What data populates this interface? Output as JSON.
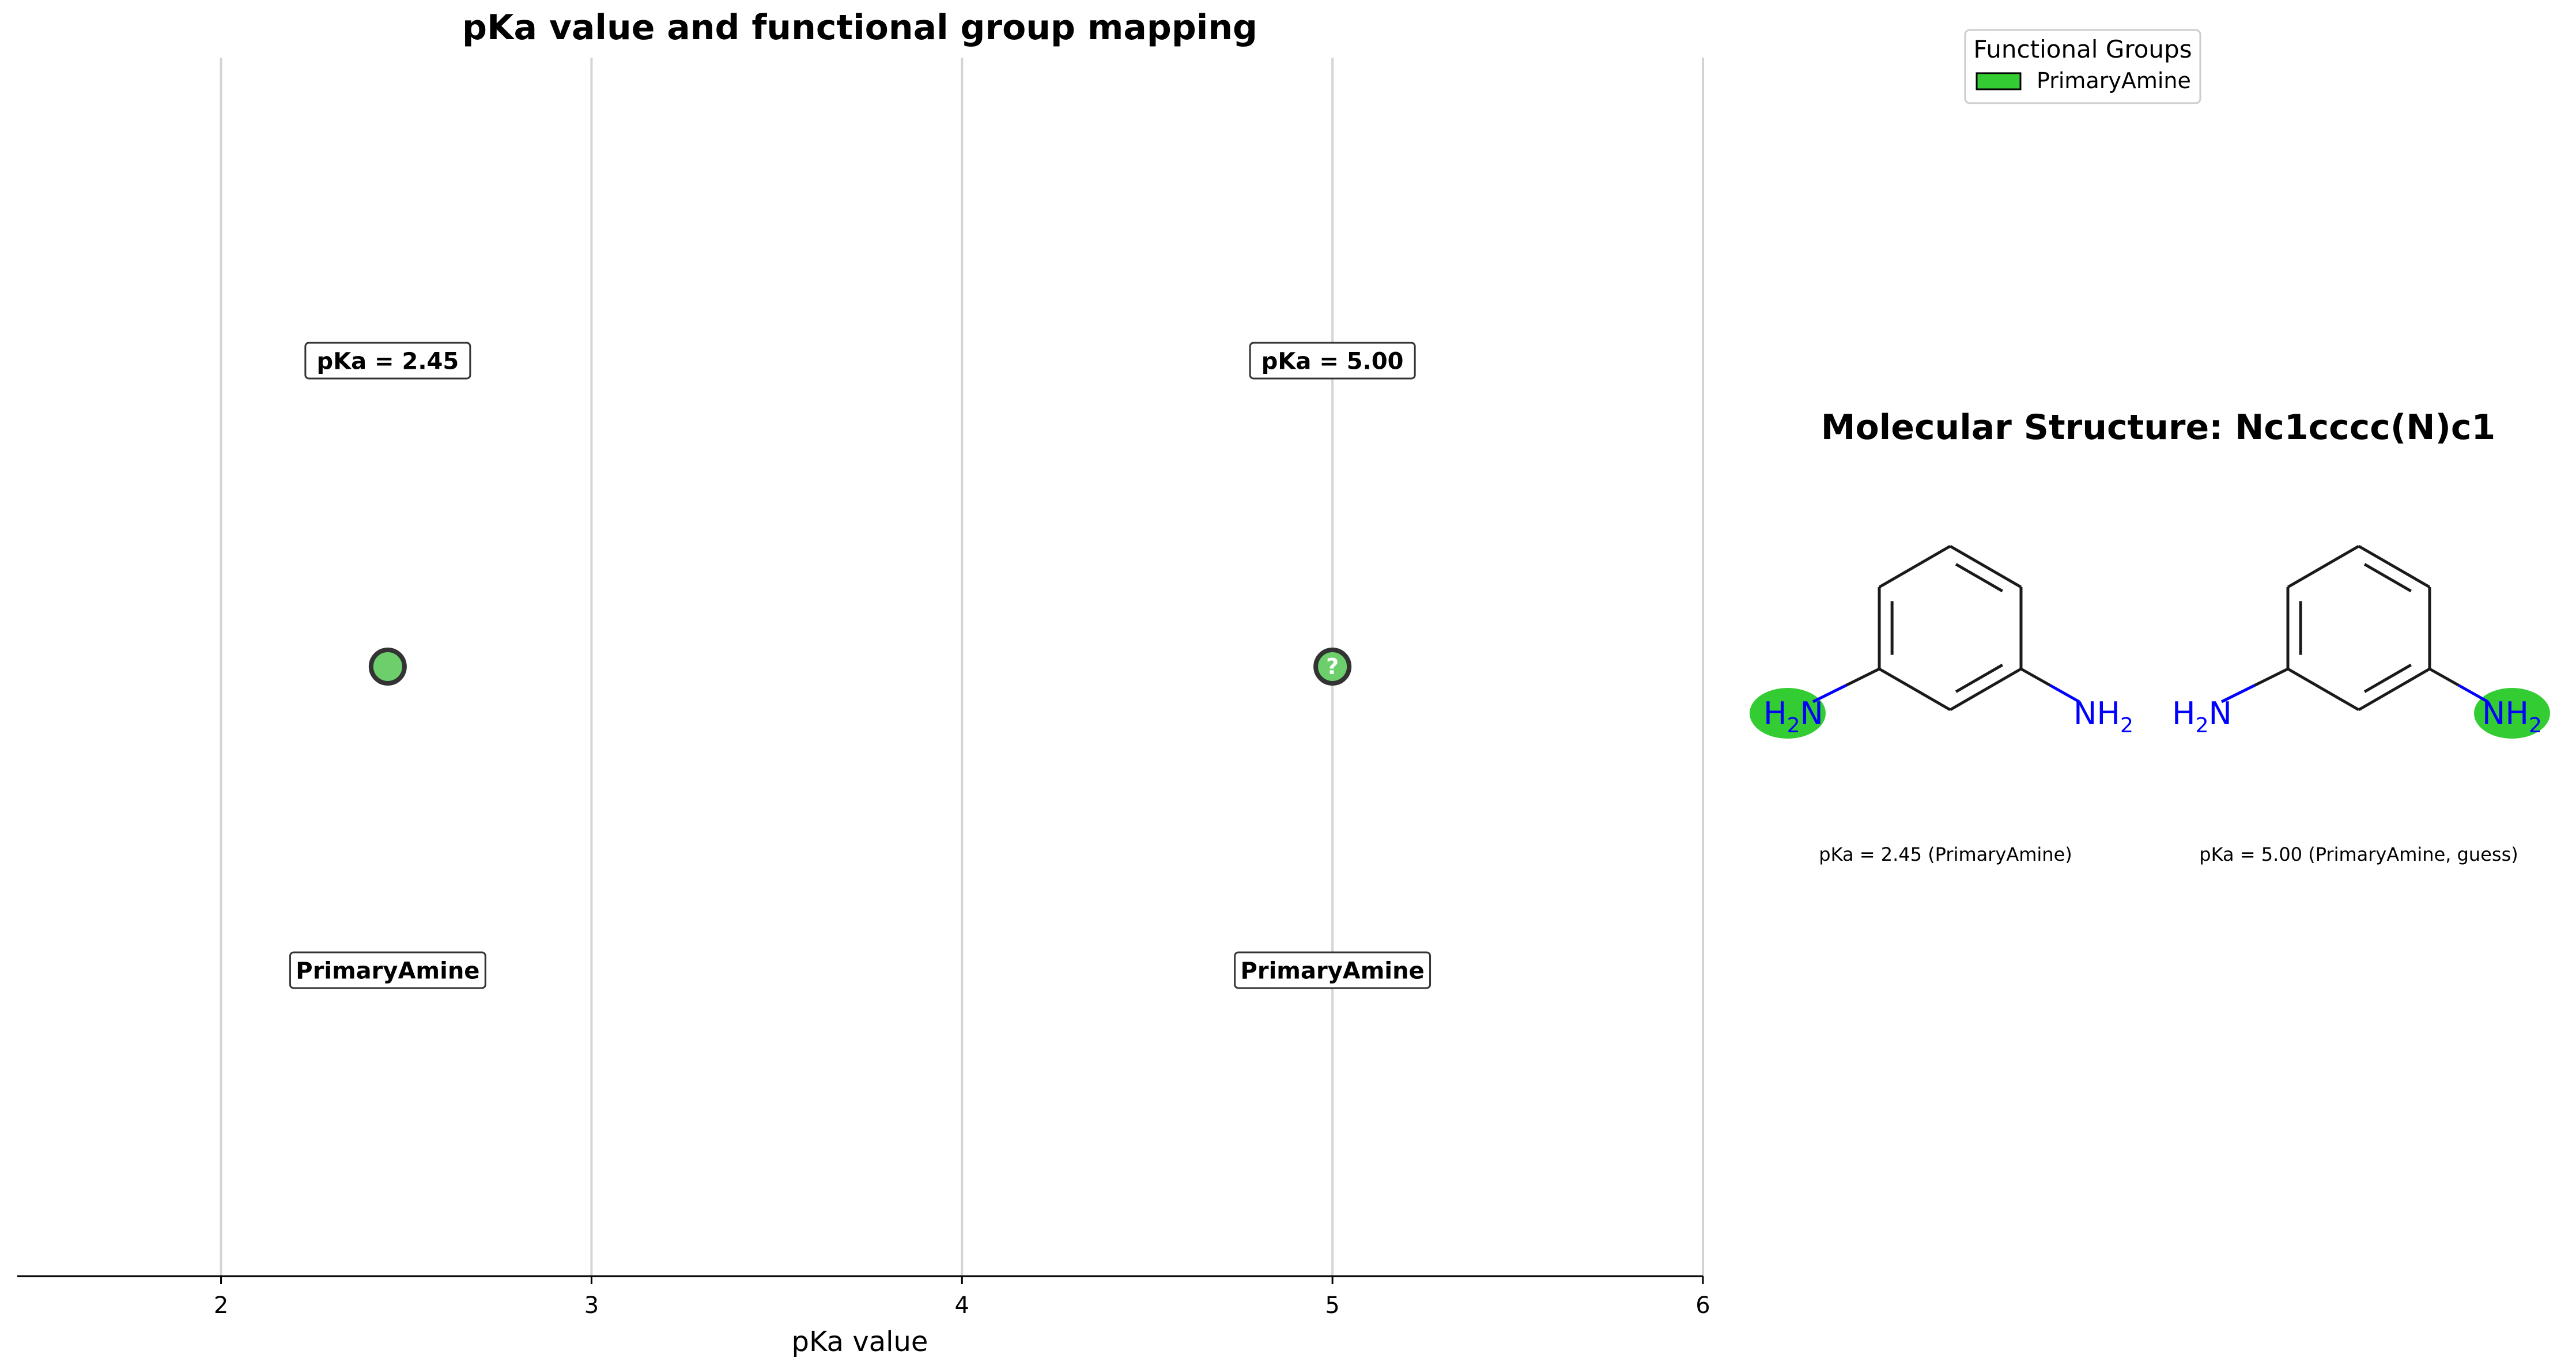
{
  "chart_data": {
    "type": "scatter",
    "title": "pKa value and functional group mapping",
    "xlabel": "pKa value",
    "ylabel": "",
    "xlim": [
      1.45,
      6.0
    ],
    "xticks": [
      "2",
      "3",
      "4",
      "5",
      "6"
    ],
    "grid": "vertical",
    "points": [
      {
        "x": 2.45,
        "pka_label": "pKa = 2.45",
        "group_label": "PrimaryAmine",
        "marker_text": "",
        "color": "#6ccf6c"
      },
      {
        "x": 5.0,
        "pka_label": "pKa = 5.00",
        "group_label": "PrimaryAmine",
        "marker_text": "?",
        "color": "#6ccf6c"
      }
    ]
  },
  "legend": {
    "title": "Functional Groups",
    "placement": "top-right",
    "items": [
      {
        "label": "PrimaryAmine",
        "color": "#33cc33"
      }
    ]
  },
  "molecule": {
    "title": "Molecular Structure: Nc1cccc(N)c1",
    "highlight_color": "#33cc33",
    "bond_color": "#1a1a1a",
    "hetero_color": "#0000ff",
    "panels": [
      {
        "left_group": "H",
        "left_sub": "2",
        "left_tail": "N",
        "right_group": "NH",
        "right_sub": "2",
        "highlight": "left",
        "caption": "pKa = 2.45 (PrimaryAmine)"
      },
      {
        "left_group": "H",
        "left_sub": "2",
        "left_tail": "N",
        "right_group": "NH",
        "right_sub": "2",
        "highlight": "right",
        "caption": "pKa = 5.00 (PrimaryAmine, guess)"
      }
    ]
  }
}
